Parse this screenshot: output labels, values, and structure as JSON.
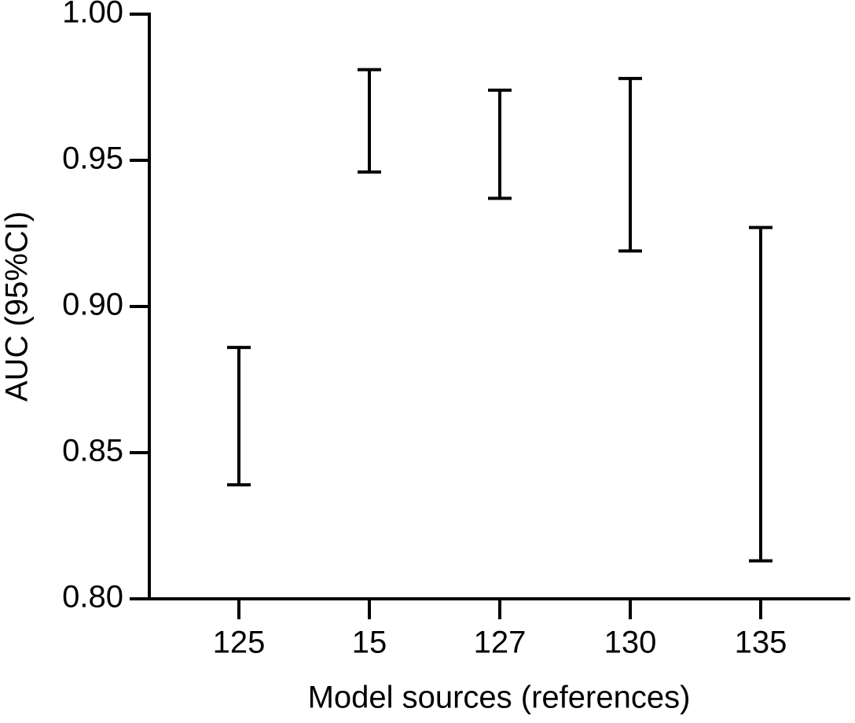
{
  "chart_data": {
    "type": "errorbar",
    "x_label": "Model sources (references)",
    "y_label": "AUC (95%CI)",
    "categories": [
      "125",
      "15",
      "127",
      "130",
      "135"
    ],
    "low": [
      0.839,
      0.946,
      0.937,
      0.919,
      0.813
    ],
    "high": [
      0.886,
      0.981,
      0.974,
      0.978,
      0.927
    ],
    "color": "#000000",
    "ylim": [
      0.8,
      1.0
    ],
    "yticks": [
      {
        "value": 0.8,
        "label": "0.80"
      },
      {
        "value": 0.85,
        "label": "0.85"
      },
      {
        "value": 0.9,
        "label": "0.90"
      },
      {
        "value": 0.95,
        "label": "0.95"
      },
      {
        "value": 1.0,
        "label": "1.00"
      }
    ]
  }
}
